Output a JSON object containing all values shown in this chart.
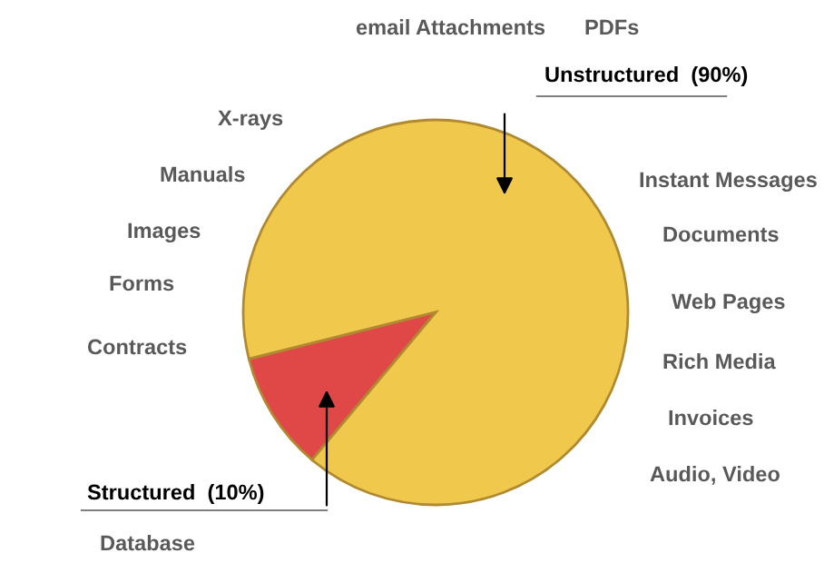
{
  "chart_data": {
    "type": "pie",
    "categories": [
      "Unstructured  (90%)",
      "Structured  (10%)"
    ],
    "values": [
      90,
      10
    ],
    "colors": [
      "#f0c84c",
      "#e04848"
    ],
    "annotations": [
      "email Attachments",
      "PDFs",
      "X-rays",
      "Manuals",
      "Instant Messages",
      "Images",
      "Documents",
      "Forms",
      "Web Pages",
      "Contracts",
      "Rich Media",
      "Invoices",
      "Audio, Video",
      "Database"
    ]
  }
}
